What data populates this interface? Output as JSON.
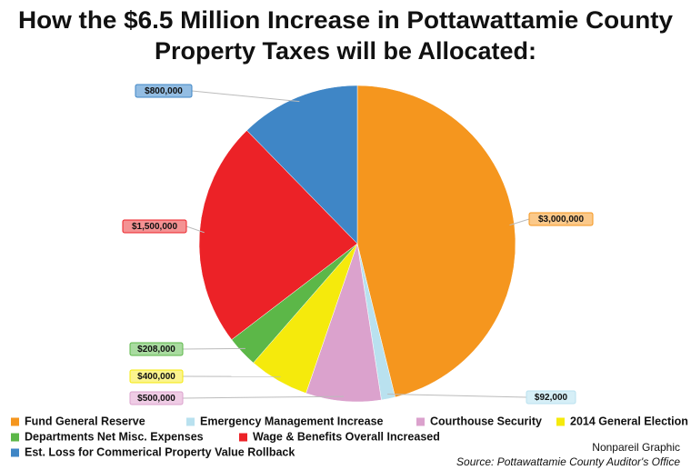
{
  "chart_data": {
    "type": "pie",
    "title": [
      "How the $6.5 Million Increase in Pottawattamie County",
      "Property Taxes will be Allocated:"
    ],
    "categories": [
      "Fund General Reserve",
      "Emergency Management Increase",
      "Courthouse Security",
      "2014 General Election",
      "Departments Net Misc. Expenses",
      "Wage & Benefits Overall Increased",
      "Est. Loss for Commerical Property Value Rollback"
    ],
    "values": [
      3000000,
      92000,
      500000,
      400000,
      208000,
      1500000,
      800000
    ],
    "value_labels": [
      "$3,000,000",
      "$92,000",
      "$500,000",
      "$400,000",
      "$208,000",
      "$1,500,000",
      "$800,000"
    ],
    "colors": [
      "#f5961e",
      "#b9e1ef",
      "#dba2cd",
      "#f5ea0c",
      "#5cb748",
      "#ec2227",
      "#3f86c6"
    ],
    "label_fills": [
      "#fbc98a",
      "#d6eff7",
      "#efcce5",
      "#fbf48e",
      "#a9dba0",
      "#f49293",
      "#93bde3"
    ],
    "credit": "Nonpareil Graphic",
    "source": "Source: Pottawattamie County Auditor's Office"
  }
}
